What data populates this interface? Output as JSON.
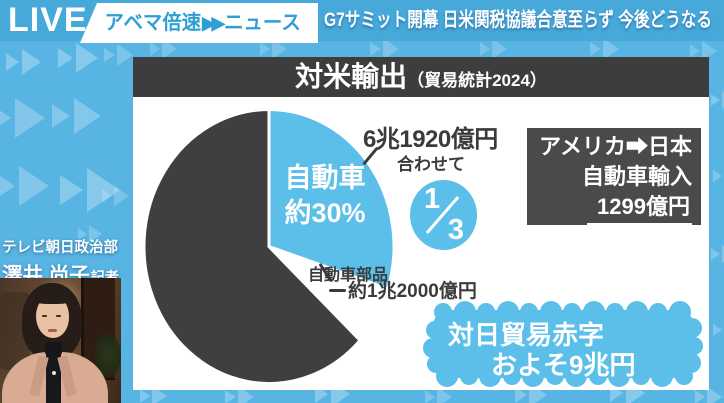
{
  "colors": {
    "background_blue": "#58b4e3",
    "topbar_blue": "#47a8da",
    "badge_text_blue": "#2e9fd4",
    "panel_title_dark": "#3d3d3d",
    "infobox_dark": "#4a4a4a",
    "accent_cyan": "#5bbfe9",
    "pie_gray": "#3f3f3f",
    "text_dark": "#3b3b3b"
  },
  "topbar": {
    "live_label": "LIVE",
    "badge_prefix": "アベマ倍速",
    "badge_arrows": "▶▶",
    "badge_suffix": "ニュース",
    "headline": "G7サミット開幕 日米関税協議合意至らず 今後どうなる"
  },
  "reporter": {
    "affiliation": "テレビ朝日政治部",
    "name": "澤井 尚子",
    "role": "記者"
  },
  "panel": {
    "title": "対米輸出",
    "title_note": "（貿易統計2024）"
  },
  "chart_data": {
    "type": "pie",
    "title": "対米輸出（貿易統計2024）",
    "start_angle": "top",
    "direction": "clockwise",
    "slices": [
      {
        "label": "自動車",
        "percent_label": "約30%",
        "percent": 30,
        "value": "6兆1920億円",
        "color": "#5bbfe9"
      },
      {
        "label": "自動車部品",
        "percent": 7,
        "value": "約1兆2000億円",
        "color": "#ffffff"
      },
      {
        "label": "",
        "percent": 63,
        "color": "#3f3f3f"
      }
    ],
    "combined_note": {
      "text": "合わせて",
      "fraction_numerator": "1",
      "fraction_denominator": "3"
    }
  },
  "infobox": {
    "line1": "アメリカ➡日本",
    "line2": "自動車輸入",
    "line3": "1299億円"
  },
  "bubble": {
    "line1": "対日貿易赤字",
    "line2": "およそ9兆円"
  }
}
